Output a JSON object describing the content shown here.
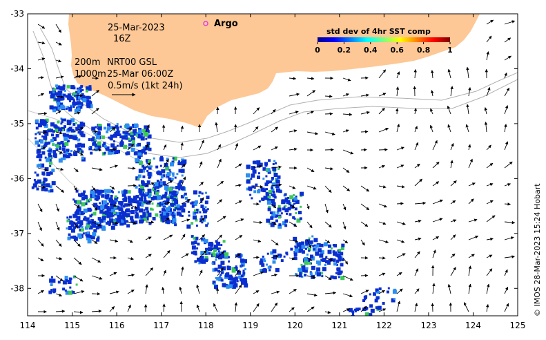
{
  "header": {
    "date": "25-Mar-2023",
    "hour": "16Z",
    "contour_a": "200m",
    "contour_b": "1000m",
    "source": "NRT00 GSL",
    "time": "25-Mar 06:00Z",
    "scale_label": "0.5m/s (1kt 24h)",
    "argo_label": "Argo"
  },
  "colorbar": {
    "title": "std dev of 4hr SST comp",
    "ticks": [
      "0",
      "0.2",
      "0.4",
      "0.6",
      "0.8",
      "1"
    ]
  },
  "credit": "© IMOS 28-Mar-2023 15:24 Hobart",
  "axes": {
    "lon_ticks": [
      "114",
      "115",
      "116",
      "117",
      "118",
      "119",
      "120",
      "121",
      "122",
      "123",
      "124",
      "125"
    ],
    "lat_ticks": [
      "-33",
      "-34",
      "-35",
      "-36",
      "-37",
      "-38"
    ],
    "lon_range": [
      114,
      125
    ],
    "lat_range": [
      -38.5,
      -33
    ]
  },
  "colors": {
    "land": "#fdc896",
    "patch_main": "#0a2fd0",
    "patch_mid": "#2c8ff0",
    "patch_hi": "#3cc85a",
    "argo": "#e040e0"
  }
}
